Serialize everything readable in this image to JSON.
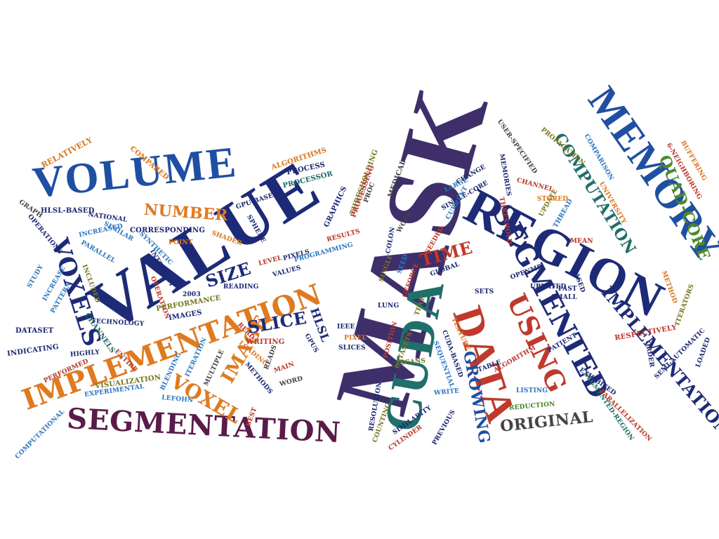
{
  "palette": {
    "navy": "#1d2a78",
    "blue": "#1f4fa3",
    "sky": "#2c7bc9",
    "purple": "#3e2f6b",
    "plum": "#5a1a4a",
    "orange": "#e07a1f",
    "red": "#c0392b",
    "teal": "#1f6f6a",
    "green": "#4b8a2a",
    "olive": "#7a7a1f",
    "gray": "#444444"
  },
  "words": [
    {
      "text": "MASK",
      "color": "purple"
    },
    {
      "text": "VALUE",
      "color": "navy"
    },
    {
      "text": "VOLUME",
      "color": "blue"
    },
    {
      "text": "REGION",
      "color": "navy"
    },
    {
      "text": "MEMORY",
      "color": "blue"
    },
    {
      "text": "SEGMENTATION",
      "color": "plum"
    },
    {
      "text": "IMPLEMENTATION",
      "color": "orange"
    },
    {
      "text": "CUDA",
      "color": "teal"
    },
    {
      "text": "DATA",
      "color": "red"
    },
    {
      "text": "SEGMENTED",
      "color": "navy"
    },
    {
      "text": "USING",
      "color": "red"
    },
    {
      "text": "IMPLEMENTATIONS",
      "color": "navy"
    },
    {
      "text": "VOXELS",
      "color": "navy"
    },
    {
      "text": "VOXEL",
      "color": "orange"
    },
    {
      "text": "IMAGE",
      "color": "orange"
    },
    {
      "text": "SLICE",
      "color": "navy"
    },
    {
      "text": "NUMBER",
      "color": "orange"
    },
    {
      "text": "SIZE",
      "color": "navy"
    },
    {
      "text": "TIME",
      "color": "red"
    },
    {
      "text": "GROWING",
      "color": "blue"
    },
    {
      "text": "ORIGINAL",
      "color": "gray"
    },
    {
      "text": "COMPUTATION",
      "color": "teal"
    },
    {
      "text": "QUAD-CORE",
      "color": "green"
    },
    {
      "text": "HLSL",
      "color": "navy"
    },
    {
      "text": "RELATIVELY",
      "color": "orange"
    },
    {
      "text": "COMPARED",
      "color": "orange"
    },
    {
      "text": "ALGORITHMS",
      "color": "orange"
    },
    {
      "text": "PROCESS",
      "color": "navy"
    },
    {
      "text": "PROCESSOR",
      "color": "teal"
    },
    {
      "text": "THRESHOLDING",
      "color": "olive"
    },
    {
      "text": "PROCESSING",
      "color": "red"
    },
    {
      "text": "GRAPHICS",
      "color": "navy"
    },
    {
      "text": "MEDICAL",
      "color": "gray"
    },
    {
      "text": "PROC",
      "color": "gray"
    },
    {
      "text": "WORK",
      "color": "gray"
    },
    {
      "text": "HLSL-BASED",
      "color": "navy"
    },
    {
      "text": "GRAPH",
      "color": "gray"
    },
    {
      "text": "OPERATIONS",
      "color": "navy"
    },
    {
      "text": "STUDY",
      "color": "sky"
    },
    {
      "text": "INCREASE",
      "color": "sky"
    },
    {
      "text": "PATTERN",
      "color": "sky"
    },
    {
      "text": "DATASET",
      "color": "navy"
    },
    {
      "text": "INDICATING",
      "color": "navy"
    },
    {
      "text": "PERFORMED",
      "color": "red"
    },
    {
      "text": "COMPUTATIONAL",
      "color": "sky"
    },
    {
      "text": "NATIONAL",
      "color": "navy"
    },
    {
      "text": "INCREASED",
      "color": "sky"
    },
    {
      "text": "SIMILAR",
      "color": "sky"
    },
    {
      "text": "PARALLEL",
      "color": "sky"
    },
    {
      "text": "INCLUDED",
      "color": "olive"
    },
    {
      "text": "CHANNELS",
      "color": "teal"
    },
    {
      "text": "TECHNOLOGY",
      "color": "navy"
    },
    {
      "text": "HIGHLY",
      "color": "navy"
    },
    {
      "text": "ENTIRE",
      "color": "red"
    },
    {
      "text": "VISUALIZATION",
      "color": "olive"
    },
    {
      "text": "EXPERIMENTAL",
      "color": "sky"
    },
    {
      "text": "BLENDING",
      "color": "sky"
    },
    {
      "text": "ITERATION",
      "color": "sky"
    },
    {
      "text": "MULTIPLE",
      "color": "gray"
    },
    {
      "text": "LEFOHN",
      "color": "sky"
    },
    {
      "text": "BEST",
      "color": "red"
    },
    {
      "text": "METHODS",
      "color": "navy"
    },
    {
      "text": "LOADING",
      "color": "orange"
    },
    {
      "text": "READ",
      "color": "red"
    },
    {
      "text": "WRITING",
      "color": "red"
    },
    {
      "text": "READS",
      "color": "gray"
    },
    {
      "text": "MAIN",
      "color": "red"
    },
    {
      "text": "WORD",
      "color": "gray"
    },
    {
      "text": "GPU-BASED",
      "color": "navy"
    },
    {
      "text": "SPHERE",
      "color": "navy"
    },
    {
      "text": "SHADER",
      "color": "orange"
    },
    {
      "text": "CORRESPONDING",
      "color": "navy"
    },
    {
      "text": "POINT",
      "color": "orange"
    },
    {
      "text": "SYNTHETIC",
      "color": "sky"
    },
    {
      "text": "RESULT",
      "color": "navy"
    },
    {
      "text": "INTENSITY",
      "color": "navy"
    },
    {
      "text": "OPERATION",
      "color": "red"
    },
    {
      "text": "2003",
      "color": "navy"
    },
    {
      "text": "READING",
      "color": "navy"
    },
    {
      "text": "VALUES",
      "color": "navy"
    },
    {
      "text": "LEVEL",
      "color": "red"
    },
    {
      "text": "PIXELS",
      "color": "navy"
    },
    {
      "text": "PROGRAMMING",
      "color": "sky"
    },
    {
      "text": "RESULTS",
      "color": "red"
    },
    {
      "text": "PERFORMANCE",
      "color": "olive"
    },
    {
      "text": "IMAGES",
      "color": "navy"
    },
    {
      "text": "GPUS",
      "color": "navy"
    },
    {
      "text": "IEEE",
      "color": "navy"
    },
    {
      "text": "PIXEL",
      "color": "orange"
    },
    {
      "text": "SLICES",
      "color": "navy"
    },
    {
      "text": "COLON",
      "color": "navy"
    },
    {
      "text": "SINGLE",
      "color": "olive"
    },
    {
      "text": "SEED",
      "color": "sky"
    },
    {
      "text": "SEEDED",
      "color": "red"
    },
    {
      "text": "GEFORCE",
      "color": "red"
    },
    {
      "text": "LUNG",
      "color": "navy"
    },
    {
      "text": "TEXT",
      "color": "olive"
    },
    {
      "text": "GLOBAL",
      "color": "navy"
    },
    {
      "text": "POSITION",
      "color": "red"
    },
    {
      "text": "DATASETS",
      "color": "olive"
    },
    {
      "text": "SCANS",
      "color": "olive"
    },
    {
      "text": "RESOLUTION",
      "color": "navy"
    },
    {
      "text": "COUNTING",
      "color": "olive"
    },
    {
      "text": "SIMILARITY",
      "color": "navy"
    },
    {
      "text": "CYLINDER",
      "color": "red"
    },
    {
      "text": "PREVIOUS",
      "color": "navy"
    },
    {
      "text": "WRITE",
      "color": "sky"
    },
    {
      "text": "SEQUENTIAL",
      "color": "sky"
    },
    {
      "text": "CUDA-BASED",
      "color": "navy"
    },
    {
      "text": "TEXTURE",
      "color": "orange"
    },
    {
      "text": "TABLE",
      "color": "navy"
    },
    {
      "text": "SETS",
      "color": "navy"
    },
    {
      "text": "LISTING",
      "color": "sky"
    },
    {
      "text": "REDUCTION",
      "color": "green"
    },
    {
      "text": "ALGORITHM",
      "color": "red"
    },
    {
      "text": "PATIENT",
      "color": "navy"
    },
    {
      "text": "SEGMENTED-REGION",
      "color": "teal"
    },
    {
      "text": "PARALLELIZATION",
      "color": "red"
    },
    {
      "text": "EXHIBITED",
      "color": "navy"
    },
    {
      "text": "UPDATED",
      "color": "navy"
    },
    {
      "text": "FAST",
      "color": "navy"
    },
    {
      "text": "SMALL",
      "color": "navy"
    },
    {
      "text": "BASED",
      "color": "navy"
    },
    {
      "text": "OPENMP",
      "color": "navy"
    },
    {
      "text": "RESPECTIVELY",
      "color": "red"
    },
    {
      "text": "ORDER",
      "color": "navy"
    },
    {
      "text": "SEMI-AUTOMATIC",
      "color": "navy"
    },
    {
      "text": "LOADED",
      "color": "navy"
    },
    {
      "text": "ITERATORS",
      "color": "olive"
    },
    {
      "text": "METHOD",
      "color": "orange"
    },
    {
      "text": "MEAN",
      "color": "red"
    },
    {
      "text": "THREAD",
      "color": "sky"
    },
    {
      "text": "UPDATE",
      "color": "olive"
    },
    {
      "text": "STORED",
      "color": "orange"
    },
    {
      "text": "CHANNEL",
      "color": "red"
    },
    {
      "text": "MEMORIES",
      "color": "navy"
    },
    {
      "text": "THRESHOLD",
      "color": "red"
    },
    {
      "text": "CURRENT",
      "color": "sky"
    },
    {
      "text": "LARGE",
      "color": "sky"
    },
    {
      "text": "SINGLE-CORE",
      "color": "navy"
    },
    {
      "text": "CHANGE",
      "color": "navy"
    },
    {
      "text": "USER-SPECIFIED",
      "color": "gray"
    },
    {
      "text": "PROPAGATION",
      "color": "olive"
    },
    {
      "text": "COMPARISON",
      "color": "sky"
    },
    {
      "text": "UNIVERSITY",
      "color": "orange"
    },
    {
      "text": "6-NEIGHBORING",
      "color": "red"
    },
    {
      "text": "BUFFERING",
      "color": "orange"
    }
  ]
}
